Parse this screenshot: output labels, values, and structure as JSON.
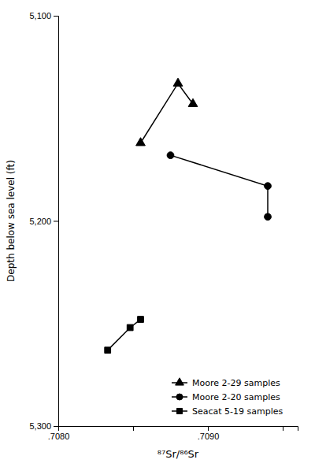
{
  "chart_data": {
    "type": "line",
    "xlabel": "⁸⁷Sr/⁸⁶Sr",
    "ylabel": "Depth below sea level (ft)",
    "xlim": [
      0.708,
      0.7096
    ],
    "ylim": [
      5300,
      5100
    ],
    "xticks": [
      {
        "value": 0.708,
        "label": ".7080"
      },
      {
        "value": 0.7085,
        "label": null
      },
      {
        "value": 0.709,
        "label": ".7090"
      },
      {
        "value": 0.7095,
        "label": null
      }
    ],
    "yticks": [
      {
        "value": 5100,
        "label": "5,100"
      },
      {
        "value": 5200,
        "label": "5,200"
      },
      {
        "value": 5300,
        "label": "5,300"
      }
    ],
    "grid": false,
    "legend": "lower right",
    "series": [
      {
        "name": "Moore 2-29 samples",
        "color": "black",
        "marker": "triangle",
        "x": [
          0.70855,
          0.7088,
          0.7089
        ],
        "values": [
          5162,
          5133,
          5143
        ]
      },
      {
        "name": "Moore 2-20 samples",
        "color": "black",
        "marker": "circle",
        "x": [
          0.70875,
          0.7094,
          0.7094
        ],
        "values": [
          5168,
          5183,
          5198
        ]
      },
      {
        "name": "Seacat 5-19 samples",
        "color": "black",
        "marker": "square",
        "x": [
          0.70833,
          0.70848,
          0.70855
        ],
        "values": [
          5263,
          5252,
          5248
        ]
      }
    ]
  }
}
